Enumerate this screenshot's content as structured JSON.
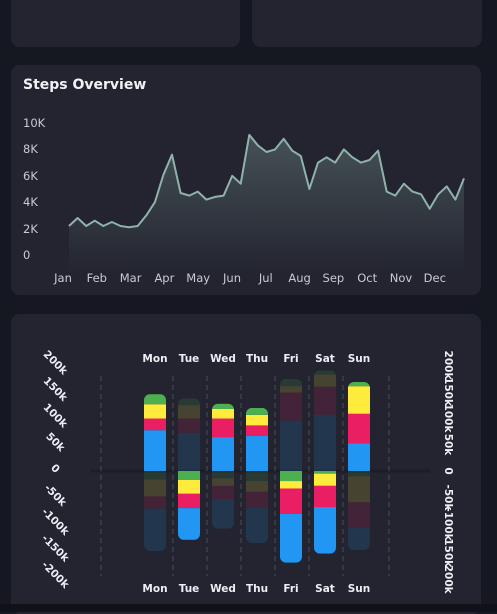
{
  "steps_card": {
    "title": "Steps Overview"
  },
  "weekday_card": {},
  "colors": {
    "line": "#8fb3aa",
    "blue": "#2196f3",
    "pink": "#e91e63",
    "yellow": "#ffeb3b",
    "green": "#4caf50",
    "card_bg": "#23242f",
    "page_bg": "#161821"
  },
  "chart_data": [
    {
      "type": "area",
      "title": "Steps Overview",
      "x_labels": [
        "Jan",
        "Feb",
        "Mar",
        "Apr",
        "May",
        "Jun",
        "Jul",
        "Aug",
        "Sep",
        "Oct",
        "Nov",
        "Dec"
      ],
      "y_ticks": [
        "10K",
        "8K",
        "6K",
        "4K",
        "2K",
        "0"
      ],
      "ylim": [
        0,
        10000
      ],
      "series": [
        {
          "values": [
            2200,
            2800,
            2200,
            2600,
            2200,
            2500,
            2200,
            2100,
            2200,
            3000,
            4000,
            6100,
            7600,
            4700,
            4500,
            4800,
            4200,
            4400,
            4500,
            6000,
            5400,
            9100,
            8300,
            7800,
            8000,
            8800,
            7900,
            7500,
            5000,
            7000,
            7400,
            7000,
            8000,
            7400,
            7000,
            7200,
            7900,
            4800,
            4500,
            5400,
            4800,
            4600,
            3500,
            4600,
            5200,
            4200,
            5800
          ]
        }
      ],
      "grid": false
    },
    {
      "type": "bar",
      "categories": [
        "Mon",
        "Tue",
        "Wed",
        "Thu",
        "Fri",
        "Sat",
        "Sun"
      ],
      "y_ticks": [
        "200k",
        "150k",
        "100k",
        "50k",
        "0",
        "-50k",
        "-100k",
        "-150k",
        "-200k"
      ],
      "ylim": [
        -200000,
        200000
      ],
      "stacked": true,
      "positive_segments": [
        [
          {
            "color": "#2196f3",
            "value": 77000,
            "faded": false
          },
          {
            "color": "#e91e63",
            "value": 22000,
            "faded": false
          },
          {
            "color": "#ffeb3b",
            "value": 27000,
            "faded": false
          },
          {
            "color": "#4caf50",
            "value": 19000,
            "faded": false
          }
        ],
        [
          {
            "color": "#2196f3",
            "value": 72000,
            "faded": true
          },
          {
            "color": "#e91e63",
            "value": 27000,
            "faded": true
          },
          {
            "color": "#ffeb3b",
            "value": 25000,
            "faded": true
          },
          {
            "color": "#4caf50",
            "value": 13000,
            "faded": true
          }
        ],
        [
          {
            "color": "#2196f3",
            "value": 64000,
            "faded": false
          },
          {
            "color": "#e91e63",
            "value": 35000,
            "faded": false
          },
          {
            "color": "#ffeb3b",
            "value": 18000,
            "faded": false
          },
          {
            "color": "#4caf50",
            "value": 10000,
            "faded": false
          }
        ],
        [
          {
            "color": "#2196f3",
            "value": 66000,
            "faded": false
          },
          {
            "color": "#e91e63",
            "value": 20000,
            "faded": false
          },
          {
            "color": "#ffeb3b",
            "value": 20000,
            "faded": false
          },
          {
            "color": "#4caf50",
            "value": 13000,
            "faded": false
          }
        ],
        [
          {
            "color": "#2196f3",
            "value": 95000,
            "faded": true
          },
          {
            "color": "#e91e63",
            "value": 53000,
            "faded": true
          },
          {
            "color": "#ffeb3b",
            "value": 12000,
            "faded": true
          },
          {
            "color": "#4caf50",
            "value": 14000,
            "faded": true
          }
        ],
        [
          {
            "color": "#2196f3",
            "value": 106000,
            "faded": true
          },
          {
            "color": "#e91e63",
            "value": 53000,
            "faded": true
          },
          {
            "color": "#ffeb3b",
            "value": 23000,
            "faded": true
          },
          {
            "color": "#4caf50",
            "value": 8000,
            "faded": true
          }
        ],
        [
          {
            "color": "#2196f3",
            "value": 52000,
            "faded": false
          },
          {
            "color": "#e91e63",
            "value": 56000,
            "faded": false
          },
          {
            "color": "#ffeb3b",
            "value": 52000,
            "faded": false
          },
          {
            "color": "#4caf50",
            "value": 8000,
            "faded": false
          }
        ]
      ],
      "negative_segments": [
        [
          {
            "color": "#4caf50",
            "value": -16000,
            "faded": true
          },
          {
            "color": "#ffeb3b",
            "value": -32000,
            "faded": true
          },
          {
            "color": "#e91e63",
            "value": -23000,
            "faded": true
          },
          {
            "color": "#2196f3",
            "value": -80000,
            "faded": true
          }
        ],
        [
          {
            "color": "#4caf50",
            "value": -17000,
            "faded": false
          },
          {
            "color": "#ffeb3b",
            "value": -26000,
            "faded": false
          },
          {
            "color": "#e91e63",
            "value": -27000,
            "faded": false
          },
          {
            "color": "#2196f3",
            "value": -60000,
            "faded": false
          }
        ],
        [
          {
            "color": "#4caf50",
            "value": -14000,
            "faded": true
          },
          {
            "color": "#ffeb3b",
            "value": -14000,
            "faded": true
          },
          {
            "color": "#e91e63",
            "value": -25000,
            "faded": true
          },
          {
            "color": "#2196f3",
            "value": -56000,
            "faded": true
          }
        ],
        [
          {
            "color": "#4caf50",
            "value": -19000,
            "faded": true
          },
          {
            "color": "#ffeb3b",
            "value": -20000,
            "faded": true
          },
          {
            "color": "#e91e63",
            "value": -30000,
            "faded": true
          },
          {
            "color": "#2196f3",
            "value": -67000,
            "faded": true
          }
        ],
        [
          {
            "color": "#4caf50",
            "value": -19000,
            "faded": false
          },
          {
            "color": "#ffeb3b",
            "value": -14000,
            "faded": false
          },
          {
            "color": "#e91e63",
            "value": -48000,
            "faded": false
          },
          {
            "color": "#2196f3",
            "value": -92000,
            "faded": false
          }
        ],
        [
          {
            "color": "#4caf50",
            "value": -5000,
            "faded": false
          },
          {
            "color": "#ffeb3b",
            "value": -23000,
            "faded": false
          },
          {
            "color": "#e91e63",
            "value": -40000,
            "faded": false
          },
          {
            "color": "#2196f3",
            "value": -88000,
            "faded": false
          }
        ],
        [
          {
            "color": "#4caf50",
            "value": -10000,
            "faded": true
          },
          {
            "color": "#ffeb3b",
            "value": -49000,
            "faded": true
          },
          {
            "color": "#e91e63",
            "value": -48000,
            "faded": true
          },
          {
            "color": "#2196f3",
            "value": -42000,
            "faded": true
          }
        ]
      ],
      "grid": false
    }
  ]
}
